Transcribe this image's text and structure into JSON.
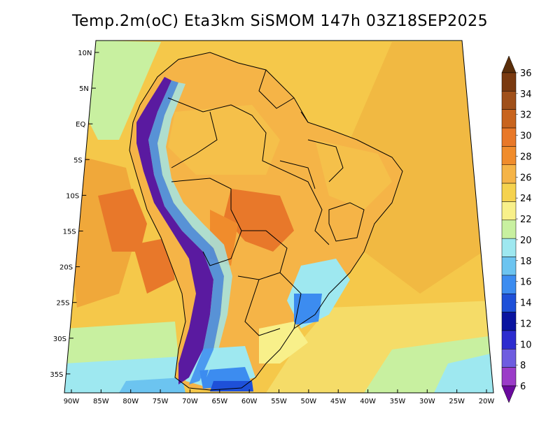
{
  "title": "Temp.2m(oC) Eta3km SiSMOM 147h 03Z18SEP2025",
  "lat_labels": [
    "10N",
    "5N",
    "EQ",
    "5S",
    "10S",
    "15S",
    "20S",
    "25S",
    "30S",
    "35S"
  ],
  "lon_labels": [
    "90W",
    "85W",
    "80W",
    "75W",
    "70W",
    "65W",
    "60W",
    "55W",
    "50W",
    "45W",
    "40W",
    "35W",
    "30W",
    "25W",
    "20W"
  ],
  "colorbar": {
    "labels": [
      "36",
      "34",
      "32",
      "30",
      "28",
      "26",
      "24",
      "22",
      "20",
      "18",
      "16",
      "14",
      "12",
      "10",
      "8",
      "6"
    ],
    "colors_top_to_bottom": [
      "#5a2e0a",
      "#7a3a10",
      "#a0501a",
      "#c8641e",
      "#e87828",
      "#f08c2c",
      "#f5b447",
      "#f5d24e",
      "#f8f08a",
      "#c8f0a0",
      "#9ee8f0",
      "#6cc4f0",
      "#3c8cf0",
      "#1e50d8",
      "#0a14a0",
      "#2d2ccf",
      "#6e5ce0",
      "#9b3cc8",
      "#6a0a9e"
    ]
  },
  "map": {
    "ocean_color": "#f2c14a",
    "cold_pacific_color": "#9ee8c8",
    "land_warm_color": "#f5a83c",
    "andes_color": "#5a1aa0"
  }
}
